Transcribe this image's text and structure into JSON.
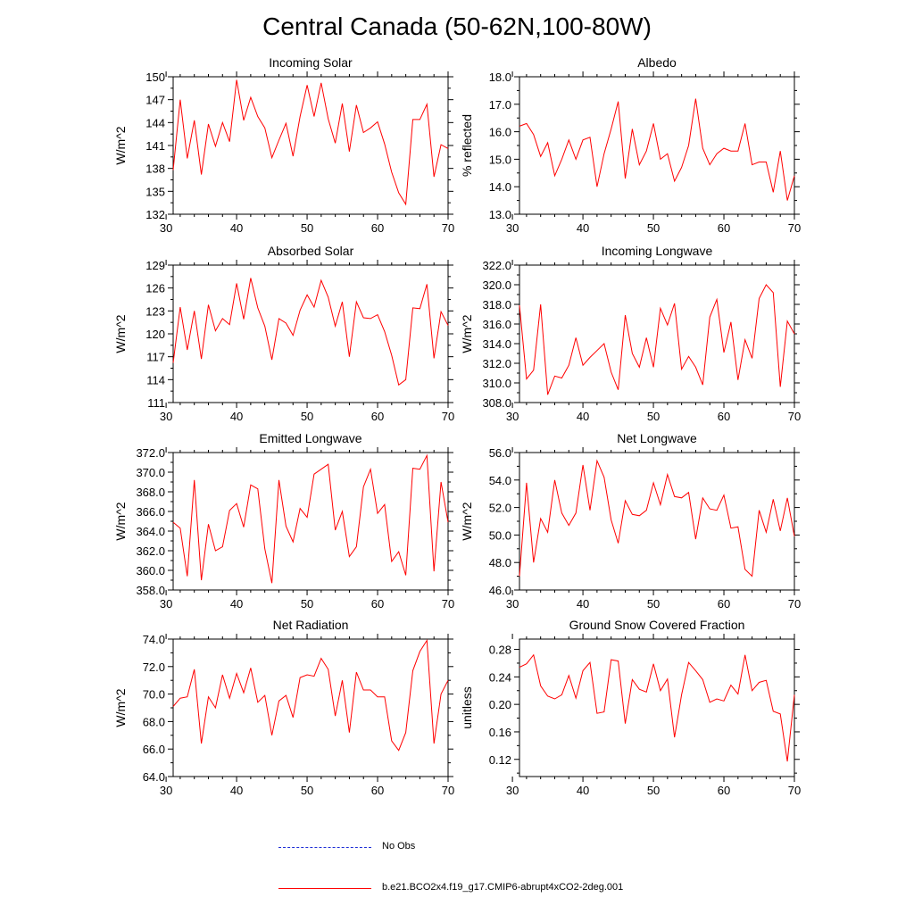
{
  "title": "Central Canada (50-62N,100-80W)",
  "legend": [
    {
      "label": "No Obs",
      "color": "#1f2fd6",
      "style": "dashed"
    },
    {
      "label": "b.e21.BCO2x4.f19_g17.CMIP6-abrupt4xCO2-2deg.001",
      "color": "#ff0000",
      "style": "solid"
    }
  ],
  "chart_data": [
    {
      "type": "line",
      "title": "Incoming Solar",
      "ylabel": "W/m^2",
      "xlim": [
        31,
        70
      ],
      "xticks": [
        30,
        40,
        50,
        60,
        70
      ],
      "ylim": [
        132,
        150
      ],
      "yticks": [
        132,
        135,
        138,
        141,
        144,
        147,
        150
      ],
      "yticklabels": [
        "132",
        "135",
        "138",
        "141",
        "144",
        "147",
        "150"
      ],
      "x": [
        31,
        32,
        33,
        34,
        35,
        36,
        37,
        38,
        39,
        40,
        41,
        42,
        43,
        44,
        45,
        46,
        47,
        48,
        49,
        50,
        51,
        52,
        53,
        54,
        55,
        56,
        57,
        58,
        59,
        60,
        61,
        62,
        63,
        64,
        65,
        66,
        67,
        68,
        69,
        70
      ],
      "series": [
        {
          "name": "b.e21.BCO2x4.f19_g17.CMIP6-abrupt4xCO2-2deg.001",
          "color": "#ff0000",
          "values": [
            137.8,
            147.0,
            139.3,
            144.3,
            137.2,
            143.8,
            140.9,
            144.0,
            141.5,
            149.6,
            144.3,
            147.3,
            144.8,
            143.3,
            139.4,
            141.7,
            143.9,
            139.6,
            144.8,
            148.9,
            144.8,
            149.2,
            144.5,
            141.3,
            146.5,
            140.2,
            146.3,
            142.7,
            143.3,
            144.1,
            141.2,
            137.5,
            134.8,
            133.3,
            144.4,
            144.4,
            146.4,
            136.9,
            141.1,
            140.6
          ]
        }
      ]
    },
    {
      "type": "line",
      "title": "Albedo",
      "ylabel": "% reflected",
      "xlim": [
        31,
        70
      ],
      "xticks": [
        30,
        40,
        50,
        60,
        70
      ],
      "ylim": [
        13,
        18
      ],
      "yticks": [
        13,
        14,
        15,
        16,
        17,
        18
      ],
      "yticklabels": [
        "13.0",
        "14.0",
        "15.0",
        "16.0",
        "17.0",
        "18.0"
      ],
      "x": [
        31,
        32,
        33,
        34,
        35,
        36,
        37,
        38,
        39,
        40,
        41,
        42,
        43,
        44,
        45,
        46,
        47,
        48,
        49,
        50,
        51,
        52,
        53,
        54,
        55,
        56,
        57,
        58,
        59,
        60,
        61,
        62,
        63,
        64,
        65,
        66,
        67,
        68,
        69,
        70
      ],
      "series": [
        {
          "name": "b.e21.BCO2x4.f19_g17.CMIP6-abrupt4xCO2-2deg.001",
          "color": "#ff0000",
          "values": [
            16.2,
            16.3,
            15.9,
            15.1,
            15.6,
            14.4,
            15.0,
            15.7,
            15.0,
            15.7,
            15.8,
            14.0,
            15.2,
            16.1,
            17.1,
            14.3,
            16.1,
            14.8,
            15.3,
            16.3,
            15.0,
            15.2,
            14.2,
            14.7,
            15.5,
            17.2,
            15.4,
            14.8,
            15.2,
            15.4,
            15.3,
            15.3,
            16.3,
            14.8,
            14.9,
            14.9,
            13.8,
            15.3,
            13.5,
            14.4
          ]
        }
      ]
    },
    {
      "type": "line",
      "title": "Absorbed Solar",
      "ylabel": "W/m^2",
      "xlim": [
        31,
        70
      ],
      "xticks": [
        30,
        40,
        50,
        60,
        70
      ],
      "ylim": [
        111,
        129
      ],
      "yticks": [
        111,
        114,
        117,
        120,
        123,
        126,
        129
      ],
      "yticklabels": [
        "111",
        "114",
        "117",
        "120",
        "123",
        "126",
        "129"
      ],
      "x": [
        31,
        32,
        33,
        34,
        35,
        36,
        37,
        38,
        39,
        40,
        41,
        42,
        43,
        44,
        45,
        46,
        47,
        48,
        49,
        50,
        51,
        52,
        53,
        54,
        55,
        56,
        57,
        58,
        59,
        60,
        61,
        62,
        63,
        64,
        65,
        66,
        67,
        68,
        69,
        70
      ],
      "series": [
        {
          "name": "b.e21.BCO2x4.f19_g17.CMIP6-abrupt4xCO2-2deg.001",
          "color": "#ff0000",
          "values": [
            116.2,
            123.5,
            117.9,
            123.0,
            116.7,
            123.8,
            120.4,
            122.0,
            121.2,
            126.6,
            121.9,
            127.3,
            123.4,
            121.0,
            116.6,
            122.0,
            121.4,
            119.8,
            123.1,
            125.1,
            123.5,
            127.0,
            124.8,
            121.0,
            124.2,
            117.0,
            124.2,
            122.1,
            122.0,
            122.5,
            120.3,
            117.2,
            113.3,
            114.0,
            123.4,
            123.3,
            126.5,
            116.8,
            122.9,
            121.1
          ]
        }
      ]
    },
    {
      "type": "line",
      "title": "Incoming Longwave",
      "ylabel": "W/m^2",
      "xlim": [
        31,
        70
      ],
      "xticks": [
        30,
        40,
        50,
        60,
        70
      ],
      "ylim": [
        308,
        322
      ],
      "yticks": [
        308,
        310,
        312,
        314,
        316,
        318,
        320,
        322
      ],
      "yticklabels": [
        "308.0",
        "310.0",
        "312.0",
        "314.0",
        "316.0",
        "318.0",
        "320.0",
        "322.0"
      ],
      "x": [
        31,
        32,
        33,
        34,
        35,
        36,
        37,
        38,
        39,
        40,
        41,
        42,
        43,
        44,
        45,
        46,
        47,
        48,
        49,
        50,
        51,
        52,
        53,
        54,
        55,
        56,
        57,
        58,
        59,
        60,
        61,
        62,
        63,
        64,
        65,
        66,
        67,
        68,
        69,
        70
      ],
      "series": [
        {
          "name": "b.e21.BCO2x4.f19_g17.CMIP6-abrupt4xCO2-2deg.001",
          "color": "#ff0000",
          "values": [
            317.9,
            310.4,
            311.3,
            318.0,
            308.8,
            310.7,
            310.5,
            311.8,
            314.6,
            311.8,
            312.6,
            313.3,
            314.0,
            311.1,
            309.3,
            316.9,
            313.0,
            311.6,
            314.6,
            311.6,
            317.6,
            315.9,
            318.1,
            311.4,
            312.7,
            311.6,
            309.8,
            316.7,
            318.5,
            313.1,
            316.2,
            310.3,
            314.4,
            312.5,
            318.6,
            320.0,
            319.2,
            309.6,
            316.3,
            315.0
          ]
        }
      ]
    },
    {
      "type": "line",
      "title": "Emitted Longwave",
      "ylabel": "W/m^2",
      "xlim": [
        31,
        70
      ],
      "xticks": [
        30,
        40,
        50,
        60,
        70
      ],
      "ylim": [
        358,
        372
      ],
      "yticks": [
        358,
        360,
        362,
        364,
        366,
        368,
        370,
        372
      ],
      "yticklabels": [
        "358.0",
        "360.0",
        "362.0",
        "364.0",
        "366.0",
        "368.0",
        "370.0",
        "372.0"
      ],
      "x": [
        31,
        32,
        33,
        34,
        35,
        36,
        37,
        38,
        39,
        40,
        41,
        42,
        43,
        44,
        45,
        46,
        47,
        48,
        49,
        50,
        51,
        52,
        53,
        54,
        55,
        56,
        57,
        58,
        59,
        60,
        61,
        62,
        63,
        64,
        65,
        66,
        67,
        68,
        69,
        70
      ],
      "series": [
        {
          "name": "b.e21.BCO2x4.f19_g17.CMIP6-abrupt4xCO2-2deg.001",
          "color": "#ff0000",
          "values": [
            364.9,
            364.3,
            359.4,
            369.2,
            359.0,
            364.7,
            362.0,
            362.4,
            366.1,
            366.8,
            364.4,
            368.7,
            368.3,
            362.2,
            358.7,
            369.2,
            364.5,
            362.9,
            366.3,
            365.4,
            369.8,
            370.3,
            370.8,
            364.1,
            366.0,
            361.4,
            362.4,
            368.5,
            370.3,
            365.8,
            366.7,
            360.9,
            361.9,
            359.5,
            370.4,
            370.3,
            371.7,
            359.9,
            369.0,
            364.9
          ]
        }
      ]
    },
    {
      "type": "line",
      "title": "Net Longwave",
      "ylabel": "W/m^2",
      "xlim": [
        31,
        70
      ],
      "xticks": [
        30,
        40,
        50,
        60,
        70
      ],
      "ylim": [
        46,
        56
      ],
      "yticks": [
        46,
        48,
        50,
        52,
        54,
        56
      ],
      "yticklabels": [
        "46.0",
        "48.0",
        "50.0",
        "52.0",
        "54.0",
        "56.0"
      ],
      "x": [
        31,
        32,
        33,
        34,
        35,
        36,
        37,
        38,
        39,
        40,
        41,
        42,
        43,
        44,
        45,
        46,
        47,
        48,
        49,
        50,
        51,
        52,
        53,
        54,
        55,
        56,
        57,
        58,
        59,
        60,
        61,
        62,
        63,
        64,
        65,
        66,
        67,
        68,
        69,
        70
      ],
      "series": [
        {
          "name": "b.e21.BCO2x4.f19_g17.CMIP6-abrupt4xCO2-2deg.001",
          "color": "#ff0000",
          "values": [
            47.0,
            53.8,
            48.0,
            51.2,
            50.2,
            54.0,
            51.6,
            50.7,
            51.6,
            55.1,
            51.8,
            55.4,
            54.2,
            51.1,
            49.4,
            52.5,
            51.5,
            51.4,
            51.8,
            53.8,
            52.2,
            54.4,
            52.8,
            52.7,
            53.1,
            49.7,
            52.7,
            51.9,
            51.8,
            52.9,
            50.5,
            50.6,
            47.5,
            47.0,
            51.8,
            50.2,
            52.6,
            50.3,
            52.7,
            49.9
          ]
        }
      ]
    },
    {
      "type": "line",
      "title": "Net Radiation",
      "ylabel": "W/m^2",
      "xlim": [
        31,
        70
      ],
      "xticks": [
        30,
        40,
        50,
        60,
        70
      ],
      "ylim": [
        64,
        74
      ],
      "yticks": [
        64,
        66,
        68,
        70,
        72,
        74
      ],
      "yticklabels": [
        "64.0",
        "66.0",
        "68.0",
        "70.0",
        "72.0",
        "74.0"
      ],
      "x": [
        31,
        32,
        33,
        34,
        35,
        36,
        37,
        38,
        39,
        40,
        41,
        42,
        43,
        44,
        45,
        46,
        47,
        48,
        49,
        50,
        51,
        52,
        53,
        54,
        55,
        56,
        57,
        58,
        59,
        60,
        61,
        62,
        63,
        64,
        65,
        66,
        67,
        68,
        69,
        70
      ],
      "series": [
        {
          "name": "b.e21.BCO2x4.f19_g17.CMIP6-abrupt4xCO2-2deg.001",
          "color": "#ff0000",
          "values": [
            69.1,
            69.7,
            69.8,
            71.8,
            66.4,
            69.8,
            69.0,
            71.4,
            69.7,
            71.5,
            70.1,
            71.9,
            69.4,
            69.9,
            67.0,
            69.5,
            69.9,
            68.3,
            71.2,
            71.4,
            71.3,
            72.6,
            71.8,
            68.4,
            71.0,
            67.2,
            71.6,
            70.3,
            70.3,
            69.8,
            69.8,
            66.6,
            65.9,
            67.2,
            71.7,
            73.1,
            73.9,
            66.4,
            70.0,
            71.0
          ]
        }
      ]
    },
    {
      "type": "line",
      "title": "Ground Snow Covered Fraction",
      "ylabel": "unitless",
      "xlim": [
        31,
        70
      ],
      "xticks": [
        30,
        40,
        50,
        60,
        70
      ],
      "ylim": [
        0.095,
        0.295
      ],
      "yticks": [
        0.12,
        0.16,
        0.2,
        0.24,
        0.28
      ],
      "yticklabels": [
        "0.12",
        "0.16",
        "0.20",
        "0.24",
        "0.28"
      ],
      "x": [
        31,
        32,
        33,
        34,
        35,
        36,
        37,
        38,
        39,
        40,
        41,
        42,
        43,
        44,
        45,
        46,
        47,
        48,
        49,
        50,
        51,
        52,
        53,
        54,
        55,
        56,
        57,
        58,
        59,
        60,
        61,
        62,
        63,
        64,
        65,
        66,
        67,
        68,
        69,
        70
      ],
      "series": [
        {
          "name": "b.e21.BCO2x4.f19_g17.CMIP6-abrupt4xCO2-2deg.001",
          "color": "#ff0000",
          "values": [
            0.254,
            0.259,
            0.272,
            0.227,
            0.212,
            0.208,
            0.214,
            0.242,
            0.209,
            0.249,
            0.261,
            0.187,
            0.189,
            0.265,
            0.263,
            0.172,
            0.236,
            0.222,
            0.218,
            0.259,
            0.22,
            0.237,
            0.152,
            0.214,
            0.261,
            0.249,
            0.236,
            0.203,
            0.208,
            0.205,
            0.228,
            0.215,
            0.272,
            0.22,
            0.232,
            0.235,
            0.19,
            0.186,
            0.117,
            0.214
          ]
        }
      ]
    }
  ]
}
